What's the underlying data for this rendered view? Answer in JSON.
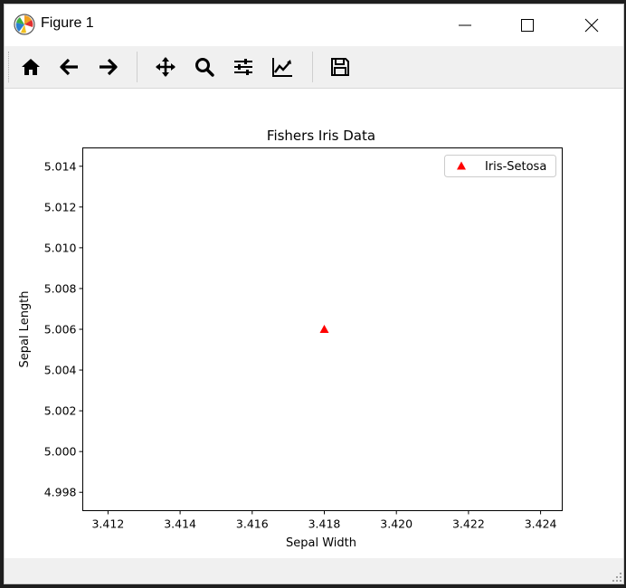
{
  "window": {
    "title": "Figure 1"
  },
  "toolbar": {
    "buttons": [
      {
        "name": "home",
        "icon": "home-icon"
      },
      {
        "name": "back",
        "icon": "arrow-left-icon"
      },
      {
        "name": "forward",
        "icon": "arrow-right-icon"
      },
      {
        "name": "pan",
        "icon": "move-icon"
      },
      {
        "name": "zoom",
        "icon": "magnifier-icon"
      },
      {
        "name": "subplots",
        "icon": "sliders-icon"
      },
      {
        "name": "edit-axes",
        "icon": "line-chart-icon"
      },
      {
        "name": "save",
        "icon": "floppy-disk-icon"
      }
    ]
  },
  "chart_data": {
    "type": "scatter",
    "title": "Fishers Iris Data",
    "xlabel": "Sepal Width",
    "ylabel": "Sepal Length",
    "xlim": [
      3.4113,
      3.4246
    ],
    "ylim": [
      4.9971,
      5.0149
    ],
    "xticks": [
      "3.412",
      "3.414",
      "3.416",
      "3.418",
      "3.420",
      "3.422",
      "3.424"
    ],
    "xtick_values": [
      3.412,
      3.414,
      3.416,
      3.418,
      3.42,
      3.422,
      3.424
    ],
    "yticks": [
      "4.998",
      "5.000",
      "5.002",
      "5.004",
      "5.006",
      "5.008",
      "5.010",
      "5.012",
      "5.014"
    ],
    "ytick_values": [
      4.998,
      5.0,
      5.002,
      5.004,
      5.006,
      5.008,
      5.01,
      5.012,
      5.014
    ],
    "series": [
      {
        "name": "Iris-Setosa",
        "marker": "triangle",
        "color": "#ff0000",
        "points": [
          {
            "x": 3.418,
            "y": 5.006
          }
        ]
      }
    ],
    "legend": "top-right",
    "grid": false
  }
}
